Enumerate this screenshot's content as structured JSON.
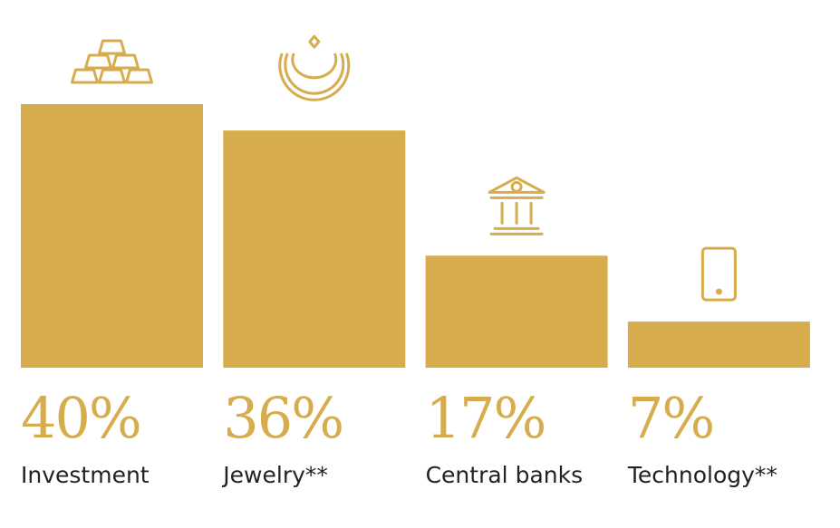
{
  "colors": {
    "bar": "#d7ac4c",
    "percent": "#d7ac4c",
    "label": "#222222"
  },
  "chart_data": {
    "type": "bar",
    "categories": [
      "Investment",
      "Jewelry**",
      "Central banks",
      "Technology**"
    ],
    "values": [
      40,
      36,
      17,
      7
    ],
    "value_labels": [
      "40%",
      "36%",
      "17%",
      "7%"
    ],
    "icons": [
      "gold-bars-icon",
      "necklace-icon",
      "bank-icon",
      "smartphone-icon"
    ],
    "ylim": [
      0,
      40
    ],
    "grid": false,
    "legend": "none"
  }
}
